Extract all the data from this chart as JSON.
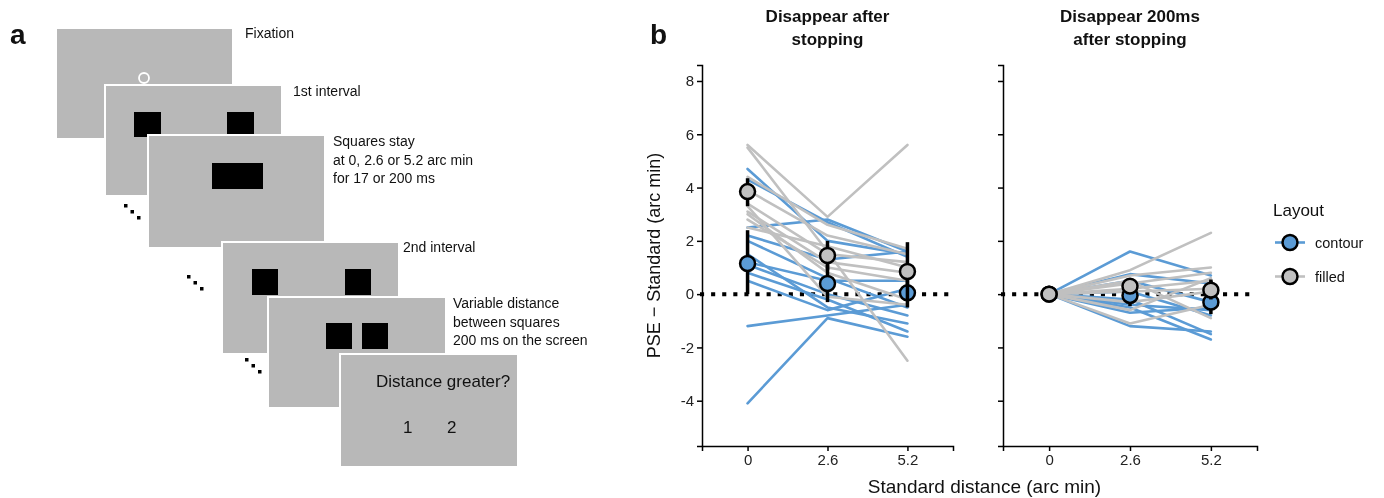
{
  "chart_data": [
    {
      "type": "other",
      "annotations": [
        "a",
        "Fixation",
        "1st interval",
        "Squares stay\nat 0, 2.6 or 5.2 arc min\nfor 17 or 200 ms",
        "2nd interval",
        "Variable distance\nbetween squares\n200 ms on the screen",
        "Distance greater?",
        "1",
        "2"
      ]
    },
    {
      "type": "line",
      "title": "Disappear after stopping",
      "ylabel": "PSE − Standard (arc min)",
      "xlabel": "Standard distance (arc min)",
      "annotations": [
        "b"
      ],
      "categories": [
        "0",
        "2.6",
        "5.2"
      ],
      "ylim": [
        -5.7,
        8.6
      ],
      "yticks": [
        -4,
        -2,
        0,
        2,
        4,
        6,
        8
      ],
      "ref_lines": [
        {
          "axis": "y",
          "value": 0,
          "line_style": "dotted",
          "color": "#000000"
        }
      ],
      "series": [
        {
          "color": "#5b9bd5",
          "values": [
            4.7,
            2.0,
            1.5
          ]
        },
        {
          "color": "#5b9bd5",
          "values": [
            4.3,
            2.7,
            1.4
          ]
        },
        {
          "color": "#5b9bd5",
          "values": [
            2.5,
            2.8,
            1.6
          ]
        },
        {
          "color": "#5b9bd5",
          "values": [
            2.2,
            1.3,
            1.6
          ]
        },
        {
          "color": "#5b9bd5",
          "values": [
            2.0,
            0.6,
            -0.5
          ]
        },
        {
          "color": "#5b9bd5",
          "values": [
            1.2,
            0.5,
            0.5
          ]
        },
        {
          "color": "#5b9bd5",
          "values": [
            1.1,
            0.0,
            -0.8
          ]
        },
        {
          "color": "#5b9bd5",
          "values": [
            0.8,
            -0.2,
            -1.4
          ]
        },
        {
          "color": "#5b9bd5",
          "values": [
            0.5,
            -0.6,
            0.2
          ]
        },
        {
          "color": "#5b9bd5",
          "values": [
            -1.2,
            -0.8,
            -0.4
          ]
        },
        {
          "color": "#5b9bd5",
          "values": [
            -4.1,
            -0.9,
            -1.6
          ]
        },
        {
          "color": "#5b9bd5",
          "values": [
            1.5,
            -0.5,
            -1.1
          ]
        },
        {
          "color": "#c0c0c0",
          "values": [
            5.6,
            2.9,
            5.6
          ]
        },
        {
          "color": "#c0c0c0",
          "values": [
            5.5,
            1.6,
            -2.5
          ]
        },
        {
          "color": "#c0c0c0",
          "values": [
            4.4,
            2.6,
            1.7
          ]
        },
        {
          "color": "#c0c0c0",
          "values": [
            3.9,
            2.2,
            1.5
          ]
        },
        {
          "color": "#c0c0c0",
          "values": [
            3.4,
            1.5,
            1.2
          ]
        },
        {
          "color": "#c0c0c0",
          "values": [
            3.1,
            1.2,
            0.8
          ]
        },
        {
          "color": "#c0c0c0",
          "values": [
            2.8,
            1.0,
            0.5
          ]
        },
        {
          "color": "#c0c0c0",
          "values": [
            3.0,
            0.8,
            -0.2
          ]
        },
        {
          "color": "#c0c0c0",
          "values": [
            2.5,
            1.8,
            1.0
          ]
        },
        {
          "color": "#c0c0c0",
          "values": [
            3.3,
            -0.1,
            -0.4
          ]
        },
        {
          "type": "scatter",
          "marker": "circle",
          "color": "#5b9bd5",
          "values": [
            1.15,
            0.4,
            0.05
          ],
          "errors": [
            [
              0,
              2.4
            ],
            [
              -0.3,
              1.2
            ],
            [
              -0.5,
              0.6
            ]
          ]
        },
        {
          "type": "scatter",
          "marker": "circle",
          "color": "#c0c0c0",
          "values": [
            3.85,
            1.45,
            0.85
          ],
          "errors": [
            [
              3.3,
              4.35
            ],
            [
              0.9,
              2.0
            ],
            [
              -0.2,
              1.95
            ]
          ]
        }
      ]
    },
    {
      "type": "line",
      "title": "Disappear 200ms after stopping",
      "legend": "right",
      "legend_title": "Layout",
      "tick_labels": "x",
      "categories": [
        "0",
        "2.6",
        "5.2"
      ],
      "ylim": [
        -5.7,
        8.6
      ],
      "yticks": [
        -4,
        -2,
        0,
        2,
        4,
        6,
        8
      ],
      "ref_lines": [
        {
          "axis": "y",
          "value": 0,
          "line_style": "dotted",
          "color": "#000000"
        }
      ],
      "series": [
        {
          "color": "#5b9bd5",
          "values": [
            0,
            1.6,
            0.7
          ]
        },
        {
          "color": "#5b9bd5",
          "values": [
            0,
            0.5,
            -0.3
          ]
        },
        {
          "color": "#5b9bd5",
          "values": [
            0,
            0.1,
            -0.8
          ]
        },
        {
          "color": "#5b9bd5",
          "values": [
            0,
            -0.2,
            -1.5
          ]
        },
        {
          "color": "#5b9bd5",
          "values": [
            0,
            -0.5,
            -1.7
          ]
        },
        {
          "color": "#5b9bd5",
          "values": [
            0,
            -0.7,
            -0.5
          ]
        },
        {
          "color": "#5b9bd5",
          "values": [
            0,
            -1.2,
            -1.4
          ]
        },
        {
          "color": "#5b9bd5",
          "values": [
            0,
            -0.4,
            -0.6
          ]
        },
        {
          "color": "#5b9bd5",
          "values": [
            0,
            0.75,
            0.4
          ]
        },
        {
          "color": "#c0c0c0",
          "values": [
            0,
            0.9,
            2.3
          ]
        },
        {
          "color": "#c0c0c0",
          "values": [
            0,
            0.7,
            1.0
          ]
        },
        {
          "color": "#c0c0c0",
          "values": [
            0,
            0.4,
            0.8
          ]
        },
        {
          "color": "#c0c0c0",
          "values": [
            0,
            0.2,
            0.5
          ]
        },
        {
          "color": "#c0c0c0",
          "values": [
            0,
            -0.3,
            0.1
          ]
        },
        {
          "color": "#c0c0c0",
          "values": [
            0,
            -0.6,
            0.6
          ]
        },
        {
          "color": "#c0c0c0",
          "values": [
            0,
            -1.1,
            -0.4
          ]
        },
        {
          "color": "#c0c0c0",
          "values": [
            0,
            0.5,
            -0.9
          ]
        },
        {
          "color": "#c0c0c0",
          "values": [
            0,
            0.1,
            0.2
          ]
        },
        {
          "type": "scatter",
          "marker": "circle",
          "name": "contour",
          "color": "#5b9bd5",
          "values": [
            0,
            -0.05,
            -0.3
          ],
          "errors": [
            null,
            [
              -0.45,
              -0.05
            ],
            [
              -0.75,
              0.55
            ]
          ]
        },
        {
          "type": "scatter",
          "marker": "circle",
          "name": "filled",
          "color": "#c0c0c0",
          "values": [
            0,
            0.3,
            0.15
          ],
          "errors": [
            null,
            [
              0.05,
              0.55
            ],
            [
              -0.2,
              0.5
            ]
          ]
        }
      ]
    }
  ]
}
